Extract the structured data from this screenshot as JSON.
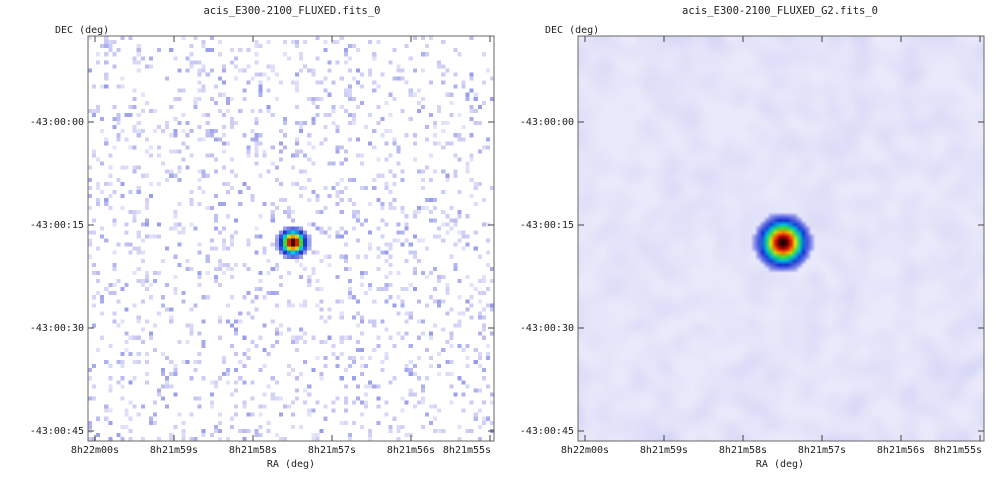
{
  "chart_data": [
    {
      "type": "heatmap",
      "title": "acis_E300-2100_FLUXED.fits_0",
      "xlabel": "RA (deg)",
      "ylabel": "DEC (deg)",
      "x_ticks": [
        "8h22m00s",
        "8h21m59s",
        "8h21m58s",
        "8h21m57s",
        "8h21m56s",
        "8h21m55s"
      ],
      "y_ticks": [
        "-43:00:00",
        "-43:00:15",
        "-43:00:30",
        "-43:00:45"
      ],
      "colormap": [
        "#ffffff",
        "#c8c8f4",
        "#1428d2",
        "#00c8e6",
        "#32dc32",
        "#ffe600",
        "#ff3c00",
        "#b40000",
        "#000000"
      ],
      "source": {
        "ra": "8h21m57.5s",
        "dec": "-43:00:17"
      },
      "smoothing": "none"
    },
    {
      "type": "heatmap",
      "title": "acis_E300-2100_FLUXED_G2.fits_0",
      "xlabel": "RA (deg)",
      "ylabel": "DEC (deg)",
      "x_ticks": [
        "8h22m00s",
        "8h21m59s",
        "8h21m58s",
        "8h21m57s",
        "8h21m56s",
        "8h21m55s"
      ],
      "y_ticks": [
        "-43:00:00",
        "-43:00:15",
        "-43:00:30",
        "-43:00:45"
      ],
      "colormap": [
        "#ffffff",
        "#c8c8f4",
        "#1428d2",
        "#00c8e6",
        "#32dc32",
        "#ffe600",
        "#ff3c00",
        "#b40000",
        "#000000"
      ],
      "source": {
        "ra": "8h21m57.5s",
        "dec": "-43:00:17"
      },
      "smoothing": "gaussian"
    }
  ]
}
